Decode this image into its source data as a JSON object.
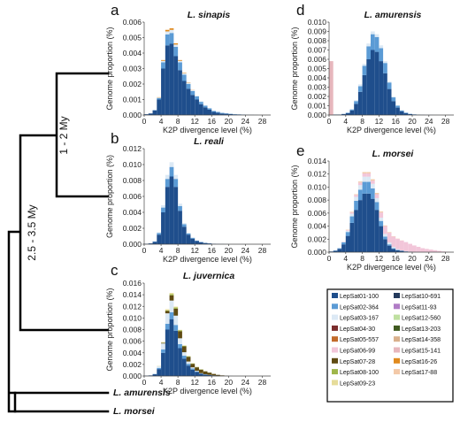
{
  "tree": {
    "taxa": [
      "L. amurensis",
      "L. morsei"
    ],
    "ages": [
      "1 - 2 My",
      "2.5 - 3.5 My"
    ]
  },
  "legend": [
    {
      "name": "LepSat01-100",
      "color": "#1f4e8c"
    },
    {
      "name": "LepSat10-691",
      "color": "#243a5c"
    },
    {
      "name": "LepSat02-364",
      "color": "#5b9bd5"
    },
    {
      "name": "LepSat11-93",
      "color": "#b07cc6"
    },
    {
      "name": "LepSat03-167",
      "color": "#dce9f5"
    },
    {
      "name": "LepSat12-560",
      "color": "#bfe0a0"
    },
    {
      "name": "LepSat04-30",
      "color": "#7b2c2c"
    },
    {
      "name": "LepSat13-203",
      "color": "#3f5a20"
    },
    {
      "name": "LepSat05-557",
      "color": "#c26a2a"
    },
    {
      "name": "LepSat14-358",
      "color": "#d9b08c"
    },
    {
      "name": "LepSat06-99",
      "color": "#f2c6d9"
    },
    {
      "name": "LepSat15-141",
      "color": "#e7b7bd"
    },
    {
      "name": "LepSat07-28",
      "color": "#5f4a12"
    },
    {
      "name": "LepSat16-26",
      "color": "#e08a1e"
    },
    {
      "name": "LepSat08-100",
      "color": "#9fb64a"
    },
    {
      "name": "LepSat17-88",
      "color": "#f3c9a8"
    },
    {
      "name": "LepSat09-23",
      "color": "#e6dc9a"
    }
  ],
  "chart_data": [
    {
      "type": "bar",
      "letter": "a",
      "title": "L. sinapis",
      "xlabel": "K2P divergence level (%)",
      "ylabel": "Genome proportion (%)",
      "xlim": [
        0,
        30
      ],
      "ylim": [
        0,
        0.006
      ],
      "xticks": [
        "0",
        "4",
        "8",
        "12",
        "16",
        "20",
        "24",
        "28"
      ],
      "yticks": [
        "0.000",
        "0.001",
        "0.002",
        "0.003",
        "0.004",
        "0.005",
        "0.006"
      ],
      "x": [
        0,
        1,
        2,
        3,
        4,
        5,
        6,
        7,
        8,
        9,
        10,
        11,
        12,
        13,
        14,
        15,
        16,
        17,
        18,
        19,
        20,
        21,
        22,
        23,
        24,
        25,
        26,
        27,
        28,
        29
      ],
      "series": [
        {
          "name": "LepSat01-100",
          "values": [
            5e-05,
            0.0001,
            0.0003,
            0.001,
            0.003,
            0.0045,
            0.0046,
            0.0038,
            0.0029,
            0.0022,
            0.0017,
            0.0013,
            0.001,
            0.0007,
            0.0005,
            0.00035,
            0.0002,
            0.00015,
            0.0001,
            8e-05,
            6e-05,
            4e-05,
            3e-05,
            2e-05,
            1e-05,
            1e-05,
            5e-06,
            0,
            0,
            0
          ]
        },
        {
          "name": "LepSat02-364",
          "values": [
            0,
            0,
            2e-05,
            0.0001,
            0.0004,
            0.0007,
            0.0007,
            0.0006,
            0.0005,
            0.0004,
            0.0003,
            0.00025,
            0.0002,
            0.00015,
            0.0001,
            8e-05,
            6e-05,
            5e-05,
            4e-05,
            3e-05,
            2e-05,
            2e-05,
            1e-05,
            1e-05,
            0,
            0,
            0,
            0,
            0,
            0
          ]
        },
        {
          "name": "LepSat03-167",
          "values": [
            0,
            0,
            0,
            3e-05,
            0.0001,
            0.0002,
            0.0002,
            0.00015,
            0.0001,
            0.0001,
            8e-05,
            6e-05,
            5e-05,
            4e-05,
            3e-05,
            2e-05,
            2e-05,
            1e-05,
            1e-05,
            1e-05,
            1e-05,
            0,
            0,
            0,
            0,
            0,
            0,
            0,
            0,
            0
          ]
        },
        {
          "name": "LepSat16-26",
          "values": [
            0,
            0,
            0,
            2e-05,
            5e-05,
            0.0001,
            0.0001,
            8e-05,
            5e-05,
            3e-05,
            2e-05,
            1e-05,
            0,
            0,
            0,
            0,
            0,
            0,
            0,
            0,
            0,
            0,
            0,
            0,
            0,
            0,
            0,
            0,
            0,
            0
          ]
        }
      ]
    },
    {
      "type": "bar",
      "letter": "b",
      "title": "L. reali",
      "xlabel": "K2P divergence level (%)",
      "ylabel": "Genome proportion (%)",
      "xlim": [
        0,
        30
      ],
      "ylim": [
        0,
        0.012
      ],
      "xticks": [
        "0",
        "4",
        "8",
        "12",
        "16",
        "20",
        "24",
        "28"
      ],
      "yticks": [
        "0.000",
        "0.002",
        "0.004",
        "0.006",
        "0.008",
        "0.010",
        "0.012"
      ],
      "x": [
        0,
        1,
        2,
        3,
        4,
        5,
        6,
        7,
        8,
        9,
        10,
        11,
        12,
        13,
        14,
        15,
        16,
        17,
        18,
        19,
        20,
        21,
        22,
        23,
        24,
        25,
        26,
        27,
        28,
        29
      ],
      "series": [
        {
          "name": "LepSat01-100",
          "values": [
            5e-05,
            0.0001,
            0.0003,
            0.0012,
            0.004,
            0.0072,
            0.0085,
            0.0072,
            0.0042,
            0.0022,
            0.0012,
            0.0007,
            0.0004,
            0.00025,
            0.00015,
            0.0001,
            5e-05,
            3e-05,
            2e-05,
            1e-05,
            0,
            0,
            0,
            0,
            0,
            0,
            0,
            0,
            0,
            0
          ]
        },
        {
          "name": "LepSat02-364",
          "values": [
            0,
            0,
            5e-05,
            0.0002,
            0.0006,
            0.001,
            0.0012,
            0.001,
            0.0006,
            0.0003,
            0.00015,
            0.0001,
            5e-05,
            3e-05,
            2e-05,
            1e-05,
            0,
            0,
            0,
            0,
            0,
            0,
            0,
            0,
            0,
            0,
            0,
            0,
            0,
            0
          ]
        },
        {
          "name": "LepSat03-167",
          "values": [
            0,
            0,
            0,
            0.0001,
            0.0003,
            0.0005,
            0.0006,
            0.0005,
            0.0003,
            0.00015,
            0.0001,
            5e-05,
            3e-05,
            2e-05,
            1e-05,
            0,
            0,
            0,
            0,
            0,
            0,
            0,
            0,
            0,
            0,
            0,
            0,
            0,
            0,
            0
          ]
        }
      ]
    },
    {
      "type": "bar",
      "letter": "c",
      "title": "L. juvernica",
      "xlabel": "K2P divergence level (%)",
      "ylabel": "Genome proportion (%)",
      "xlim": [
        0,
        30
      ],
      "ylim": [
        0,
        0.016
      ],
      "xticks": [
        "0",
        "4",
        "8",
        "12",
        "16",
        "20",
        "24",
        "28"
      ],
      "yticks": [
        "0.000",
        "0.002",
        "0.004",
        "0.006",
        "0.008",
        "0.010",
        "0.012",
        "0.014",
        "0.016"
      ],
      "x": [
        0,
        1,
        2,
        3,
        4,
        5,
        6,
        7,
        8,
        9,
        10,
        11,
        12,
        13,
        14,
        15,
        16,
        17,
        18,
        19,
        20,
        21,
        22,
        23,
        24,
        25,
        26,
        27,
        28,
        29
      ],
      "series": [
        {
          "name": "LepSat01-100",
          "values": [
            5e-05,
            0.0001,
            0.0003,
            0.0012,
            0.004,
            0.008,
            0.0098,
            0.0078,
            0.0048,
            0.003,
            0.0018,
            0.0011,
            0.0007,
            0.0004,
            0.00025,
            0.00015,
            0.0001,
            5e-05,
            3e-05,
            2e-05,
            1e-05,
            0,
            0,
            0,
            0,
            0,
            0,
            0,
            0,
            0
          ]
        },
        {
          "name": "LepSat02-364",
          "values": [
            0,
            0,
            5e-05,
            0.0002,
            0.0006,
            0.001,
            0.0012,
            0.001,
            0.0007,
            0.0005,
            0.0003,
            0.0002,
            0.0001,
            5e-05,
            3e-05,
            2e-05,
            1e-05,
            0,
            0,
            0,
            0,
            0,
            0,
            0,
            0,
            0,
            0,
            0,
            0,
            0
          ]
        },
        {
          "name": "LepSat03-167",
          "values": [
            0,
            0,
            0,
            0.0003,
            0.001,
            0.0018,
            0.002,
            0.0016,
            0.001,
            0.0006,
            0.0004,
            0.0002,
            0.0001,
            5e-05,
            3e-05,
            2e-05,
            0,
            0,
            0,
            0,
            0,
            0,
            0,
            0,
            0,
            0,
            0,
            0,
            0,
            0
          ]
        },
        {
          "name": "LepSat07-28",
          "values": [
            0,
            0,
            0,
            0,
            0.0001,
            0.0004,
            0.0009,
            0.0012,
            0.0012,
            0.001,
            0.0008,
            0.0006,
            0.0006,
            0.0006,
            0.0005,
            0.0004,
            0.00025,
            0.00015,
            8e-05,
            3e-05,
            0,
            0,
            0,
            0,
            0,
            0,
            0,
            0,
            0,
            0
          ]
        },
        {
          "name": "LepSat08-100",
          "values": [
            0,
            0,
            0,
            0,
            5e-05,
            0.0001,
            0.0002,
            0.0002,
            0.00015,
            0.0001,
            0.0001,
            8e-05,
            6e-05,
            5e-05,
            3e-05,
            2e-05,
            1e-05,
            0,
            0,
            0,
            0,
            0,
            0,
            0,
            0,
            0,
            0,
            0,
            0,
            0
          ]
        },
        {
          "name": "LepSat09-23",
          "values": [
            0,
            0,
            0,
            5e-05,
            0.0001,
            0.0002,
            0.0002,
            0.00015,
            0.0001,
            8e-05,
            5e-05,
            3e-05,
            2e-05,
            1e-05,
            0,
            0,
            0,
            0,
            0,
            0,
            0,
            0,
            0,
            0,
            0,
            0,
            0,
            0,
            0,
            0
          ]
        }
      ]
    },
    {
      "type": "bar",
      "letter": "d",
      "title": "L. amurensis",
      "xlabel": "K2P divergence level (%)",
      "ylabel": "Genome proportion (%)",
      "xlim": [
        0,
        30
      ],
      "ylim": [
        0,
        0.01
      ],
      "xticks": [
        "0",
        "4",
        "8",
        "12",
        "16",
        "20",
        "24",
        "28"
      ],
      "yticks": [
        "0.000",
        "0.001",
        "0.002",
        "0.003",
        "0.004",
        "0.005",
        "0.006",
        "0.007",
        "0.008",
        "0.009",
        "0.010"
      ],
      "x": [
        0,
        1,
        2,
        3,
        4,
        5,
        6,
        7,
        8,
        9,
        10,
        11,
        12,
        13,
        14,
        15,
        16,
        17,
        18,
        19,
        20,
        21,
        22,
        23,
        24,
        25,
        26,
        27,
        28,
        29
      ],
      "series": [
        {
          "name": "LepSat01-100",
          "values": [
            0,
            5e-05,
            5e-05,
            0.0001,
            0.0002,
            0.0005,
            0.0012,
            0.0025,
            0.0043,
            0.006,
            0.007,
            0.0068,
            0.0058,
            0.0045,
            0.0028,
            0.0015,
            0.0008,
            0.0004,
            0.0002,
            0.0001,
            5e-05,
            3e-05,
            2e-05,
            1e-05,
            1e-05,
            5e-06,
            0,
            0,
            0,
            0
          ]
        },
        {
          "name": "LepSat02-364",
          "values": [
            0,
            0,
            0,
            2e-05,
            5e-05,
            0.0001,
            0.0003,
            0.0006,
            0.001,
            0.0014,
            0.0017,
            0.0016,
            0.0014,
            0.0011,
            0.0007,
            0.0004,
            0.0002,
            0.0001,
            6e-05,
            3e-05,
            2e-05,
            1e-05,
            0,
            0,
            0,
            0,
            0,
            0,
            0,
            0
          ]
        },
        {
          "name": "LepSat03-167",
          "values": [
            0,
            0,
            0,
            0,
            2e-05,
            5e-05,
            0.0001,
            0.0002,
            0.0002,
            0.0003,
            0.0003,
            0.0003,
            0.0003,
            0.0002,
            0.0001,
            8e-05,
            5e-05,
            3e-05,
            2e-05,
            1e-05,
            0,
            0,
            0,
            0,
            0,
            0,
            0,
            0,
            0,
            0
          ]
        },
        {
          "name": "LepSat15-141",
          "values": [
            0.0058,
            0,
            0,
            0,
            0,
            0,
            0,
            0,
            0,
            0,
            0,
            0,
            0,
            0,
            0,
            0,
            0,
            0,
            0,
            0,
            0,
            0,
            0,
            0,
            0,
            0,
            0,
            0,
            0,
            0
          ]
        }
      ]
    },
    {
      "type": "bar",
      "letter": "e",
      "title": "L. morsei",
      "xlabel": "K2P divergence level (%)",
      "ylabel": "Genome proportion (%)",
      "xlim": [
        0,
        30
      ],
      "ylim": [
        0,
        0.014
      ],
      "xticks": [
        "0",
        "4",
        "8",
        "12",
        "16",
        "20",
        "24",
        "28"
      ],
      "yticks": [
        "0.000",
        "0.002",
        "0.004",
        "0.006",
        "0.008",
        "0.010",
        "0.012",
        "0.014"
      ],
      "x": [
        0,
        1,
        2,
        3,
        4,
        5,
        6,
        7,
        8,
        9,
        10,
        11,
        12,
        13,
        14,
        15,
        16,
        17,
        18,
        19,
        20,
        21,
        22,
        23,
        24,
        25,
        26,
        27,
        28,
        29
      ],
      "series": [
        {
          "name": "LepSat01-100",
          "values": [
            0.0001,
            0.0002,
            0.0005,
            0.0012,
            0.0025,
            0.0045,
            0.0065,
            0.008,
            0.009,
            0.009,
            0.0082,
            0.0065,
            0.004,
            0.002,
            0.001,
            0.0005,
            0.0003,
            0.0002,
            0.0001,
            5e-05,
            3e-05,
            2e-05,
            1e-05,
            0,
            0,
            0,
            0,
            0,
            0,
            0
          ]
        },
        {
          "name": "LepSat02-364",
          "values": [
            0,
            5e-05,
            0.0001,
            0.0003,
            0.0006,
            0.001,
            0.0014,
            0.0016,
            0.0018,
            0.0018,
            0.0016,
            0.0012,
            0.0008,
            0.0004,
            0.0002,
            0.0001,
            5e-05,
            3e-05,
            2e-05,
            1e-05,
            0,
            0,
            0,
            0,
            0,
            0,
            0,
            0,
            0,
            0
          ]
        },
        {
          "name": "LepSat03-167",
          "values": [
            0,
            0,
            5e-05,
            0.0001,
            0.0002,
            0.0004,
            0.0006,
            0.0007,
            0.0008,
            0.0008,
            0.0007,
            0.0006,
            0.0005,
            0.0004,
            0.0003,
            0.0002,
            0.0001,
            5e-05,
            3e-05,
            2e-05,
            0,
            0,
            0,
            0,
            0,
            0,
            0,
            0,
            0,
            0
          ]
        },
        {
          "name": "LepSat06-99",
          "values": [
            0,
            0,
            0,
            5e-05,
            0.0001,
            0.0002,
            0.0003,
            0.0004,
            0.0005,
            0.0005,
            0.0005,
            0.0006,
            0.0008,
            0.0012,
            0.0015,
            0.0016,
            0.0016,
            0.0015,
            0.0014,
            0.0012,
            0.001,
            0.0008,
            0.0006,
            0.0005,
            0.0004,
            0.0003,
            0.0002,
            0.0001,
            5e-05,
            0
          ]
        },
        {
          "name": "LepSat17-88",
          "values": [
            0,
            0,
            0,
            0,
            5e-05,
            0.0001,
            0.0001,
            0.00015,
            0.0002,
            0.0002,
            0.0002,
            0.0002,
            0.00015,
            0.0001,
            8e-05,
            5e-05,
            3e-05,
            2e-05,
            0,
            0,
            0,
            0,
            0,
            0,
            0,
            0,
            0,
            0,
            0,
            0
          ]
        }
      ]
    }
  ]
}
